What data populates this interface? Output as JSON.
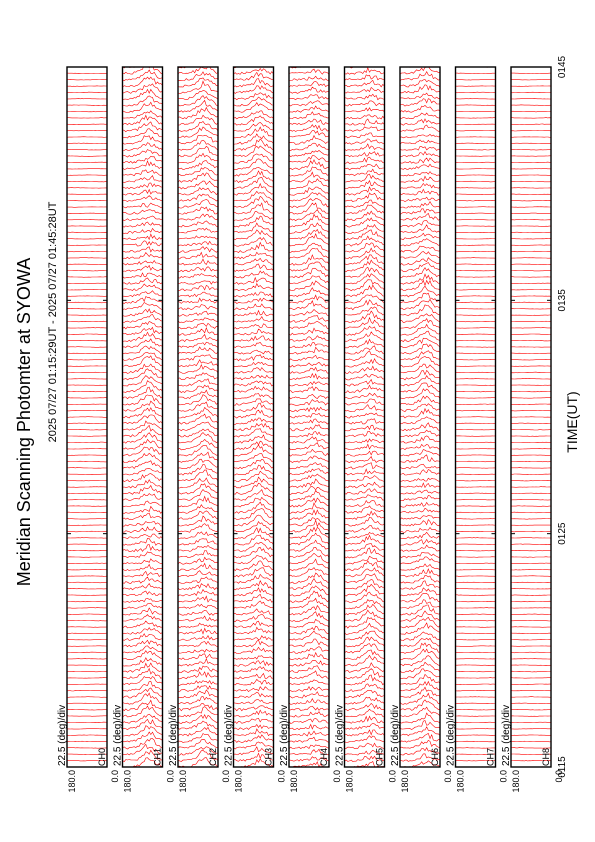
{
  "title": "Meridian Scanning Photomter at SYOWA",
  "time_range": "2025 07/27 01:15:29UT - 2025 07/27 01:45:28UT",
  "chart_data": {
    "type": "line",
    "xlabel": "TIME(UT)",
    "xlim": [
      "0115",
      "0145"
    ],
    "x_ticks": [
      "0115",
      "0125",
      "0135",
      "0145"
    ],
    "scale_label": "22.5 (deg)/div",
    "y_ticks": [
      "180.0",
      "0.0"
    ],
    "series_color": "#ff0000",
    "panels": [
      {
        "channel": "CH0",
        "ylim": [
          0.0,
          180.0
        ],
        "profile": "flat"
      },
      {
        "channel": "CH1",
        "ylim": [
          0.0,
          180.0
        ],
        "profile": "variable"
      },
      {
        "channel": "CH2",
        "ylim": [
          0.0,
          180.0
        ],
        "profile": "variable"
      },
      {
        "channel": "CH3",
        "ylim": [
          0.0,
          180.0
        ],
        "profile": "variable"
      },
      {
        "channel": "CH4",
        "ylim": [
          0.0,
          180.0
        ],
        "profile": "variable"
      },
      {
        "channel": "CH5",
        "ylim": [
          0.0,
          180.0
        ],
        "profile": "variable"
      },
      {
        "channel": "CH6",
        "ylim": [
          0.0,
          180.0
        ],
        "profile": "variable"
      },
      {
        "channel": "CH7",
        "ylim": [
          0.0,
          180.0
        ],
        "profile": "flat"
      },
      {
        "channel": "CH8",
        "ylim": [
          0.0,
          180.0
        ],
        "profile": "flat"
      }
    ]
  }
}
